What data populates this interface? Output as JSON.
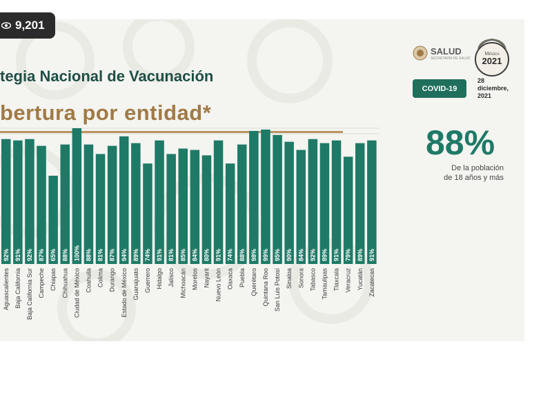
{
  "overlay": {
    "view_count": "9,201"
  },
  "header": {
    "title": "tegia Nacional de Vacunación",
    "subtitle": "bertura por entidad*"
  },
  "logos": {
    "salud": "SALUD",
    "salud_sub": "SECRETARÍA DE SALUD",
    "seal_year": "2021",
    "covid_label": "COVID-19",
    "date_day": "28",
    "date_month": "diciembre,",
    "date_year": "2021"
  },
  "summary": {
    "percent": "88%",
    "line1": "De la población",
    "line2": "de 18 años y más"
  },
  "colors": {
    "bar": "#1e7a66",
    "title": "#1f4e45",
    "subtitle": "#a07a46",
    "accent": "#b89560"
  },
  "chart_data": {
    "type": "bar",
    "title": "Cobertura por entidad",
    "ylim": [
      0,
      100
    ],
    "categories": [
      "Aguascalientes",
      "Baja California",
      "Baja California Sur",
      "Campeche",
      "Chiapas",
      "Chihuahua",
      "Ciudad de México",
      "Coahuila",
      "Colima",
      "Durango",
      "Estado de México",
      "Guanajuato",
      "Guerrero",
      "Hidalgo",
      "Jalisco",
      "Michoacán",
      "Morelos",
      "Nayarit",
      "Nuevo León",
      "Oaxaca",
      "Puebla",
      "Querétaro",
      "Quintana Roo",
      "San Luis Potosí",
      "Sinaloa",
      "Sonora",
      "Tabasco",
      "Tamaulipas",
      "Tlaxcala",
      "Veracruz",
      "Yucatán",
      "Zacatecas"
    ],
    "values": [
      92,
      91,
      92,
      87,
      65,
      88,
      100,
      88,
      81,
      87,
      94,
      89,
      74,
      91,
      81,
      85,
      84,
      80,
      91,
      74,
      88,
      98,
      99,
      95,
      90,
      84,
      92,
      89,
      91,
      79,
      89,
      91
    ],
    "labels": [
      "92%",
      "91%",
      "92%",
      "87%",
      "65%",
      "88%",
      "100%",
      "88%",
      "81%",
      "87%",
      "94%",
      "89%",
      "74%",
      "91%",
      "81%",
      "85%",
      "84%",
      "80%",
      "91%",
      "74%",
      "88%",
      "98%",
      "99%",
      "95%",
      "90%",
      "84%",
      "92%",
      "89%",
      "91%",
      "79%",
      "89%",
      "91%"
    ]
  }
}
